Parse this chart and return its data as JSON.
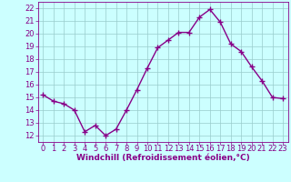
{
  "x": [
    0,
    1,
    2,
    3,
    4,
    5,
    6,
    7,
    8,
    9,
    10,
    11,
    12,
    13,
    14,
    15,
    16,
    17,
    18,
    19,
    20,
    21,
    22,
    23
  ],
  "y": [
    15.2,
    14.7,
    14.5,
    14.0,
    12.3,
    12.8,
    12.0,
    12.5,
    14.0,
    15.6,
    17.3,
    18.9,
    19.5,
    20.1,
    20.1,
    21.3,
    21.9,
    20.9,
    19.2,
    18.6,
    17.4,
    16.3,
    15.0,
    14.9
  ],
  "line_color": "#880088",
  "marker": "+",
  "markersize": 4,
  "linewidth": 1.0,
  "xlim": [
    -0.5,
    23.5
  ],
  "ylim": [
    11.5,
    22.5
  ],
  "yticks": [
    12,
    13,
    14,
    15,
    16,
    17,
    18,
    19,
    20,
    21,
    22
  ],
  "xticks": [
    0,
    1,
    2,
    3,
    4,
    5,
    6,
    7,
    8,
    9,
    10,
    11,
    12,
    13,
    14,
    15,
    16,
    17,
    18,
    19,
    20,
    21,
    22,
    23
  ],
  "xlabel": "Windchill (Refroidissement éolien,°C)",
  "xlabel_color": "#880088",
  "xlabel_fontsize": 6.5,
  "tick_fontsize": 6.0,
  "tick_color": "#880088",
  "bg_color": "#ccffff",
  "grid_color": "#99cccc",
  "spine_color": "#880088"
}
